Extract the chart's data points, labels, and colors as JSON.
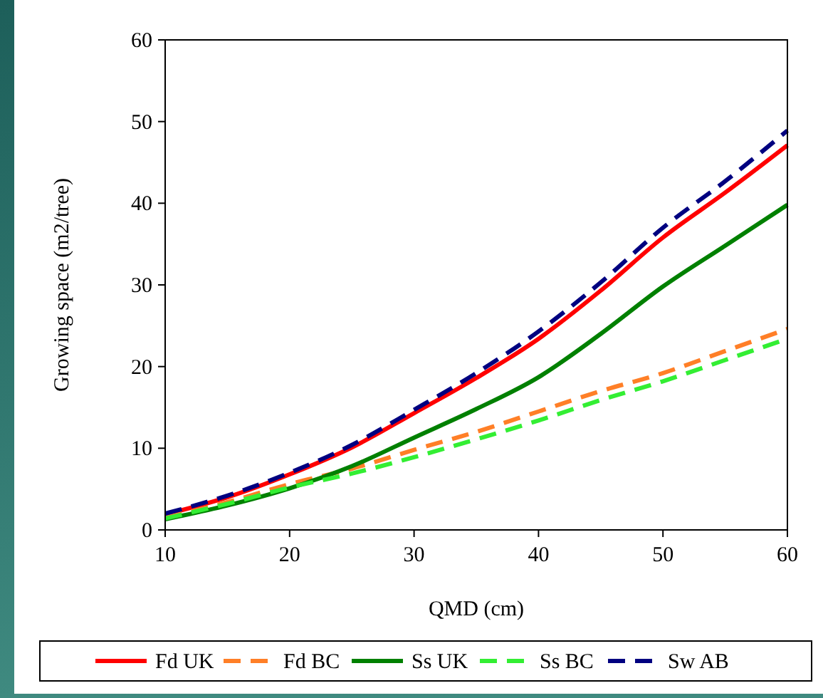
{
  "chart_data": {
    "type": "line",
    "xlabel": "QMD (cm)",
    "ylabel": "Growing space (m2/tree)",
    "x": [
      10,
      15,
      20,
      25,
      30,
      35,
      40,
      45,
      50,
      55,
      60
    ],
    "xlim": [
      10,
      60
    ],
    "xticks": [
      10,
      20,
      30,
      40,
      50,
      60
    ],
    "ylim": [
      0,
      60
    ],
    "yticks": [
      0,
      10,
      20,
      30,
      40,
      50,
      60
    ],
    "grid": false,
    "legend": "bottom",
    "marker": "none",
    "series": [
      {
        "name": "Fd UK",
        "color": "#ff0000",
        "line_style": "solid",
        "values": [
          1.9,
          4.0,
          6.8,
          10.1,
          14.3,
          18.6,
          23.4,
          29.3,
          35.8,
          41.3,
          47.1
        ]
      },
      {
        "name": "Fd BC",
        "color": "#ff7f27",
        "line_style": "dashed",
        "values": [
          1.5,
          3.4,
          5.6,
          7.5,
          9.8,
          12.0,
          14.5,
          17.0,
          19.2,
          21.9,
          24.6
        ]
      },
      {
        "name": "Ss UK",
        "color": "#008000",
        "line_style": "solid",
        "values": [
          1.3,
          3.0,
          5.1,
          7.8,
          11.3,
          14.8,
          18.7,
          24.0,
          29.8,
          34.8,
          39.8
        ]
      },
      {
        "name": "Ss BC",
        "color": "#33ee33",
        "line_style": "dashed",
        "values": [
          1.4,
          3.2,
          5.2,
          6.9,
          8.9,
          11.1,
          13.4,
          15.9,
          18.2,
          20.8,
          23.4
        ]
      },
      {
        "name": "Sw AB",
        "color": "#000080",
        "line_style": "dashed",
        "values": [
          2.0,
          4.2,
          7.0,
          10.4,
          14.7,
          19.2,
          24.3,
          30.3,
          37.0,
          42.7,
          48.9
        ]
      }
    ]
  }
}
